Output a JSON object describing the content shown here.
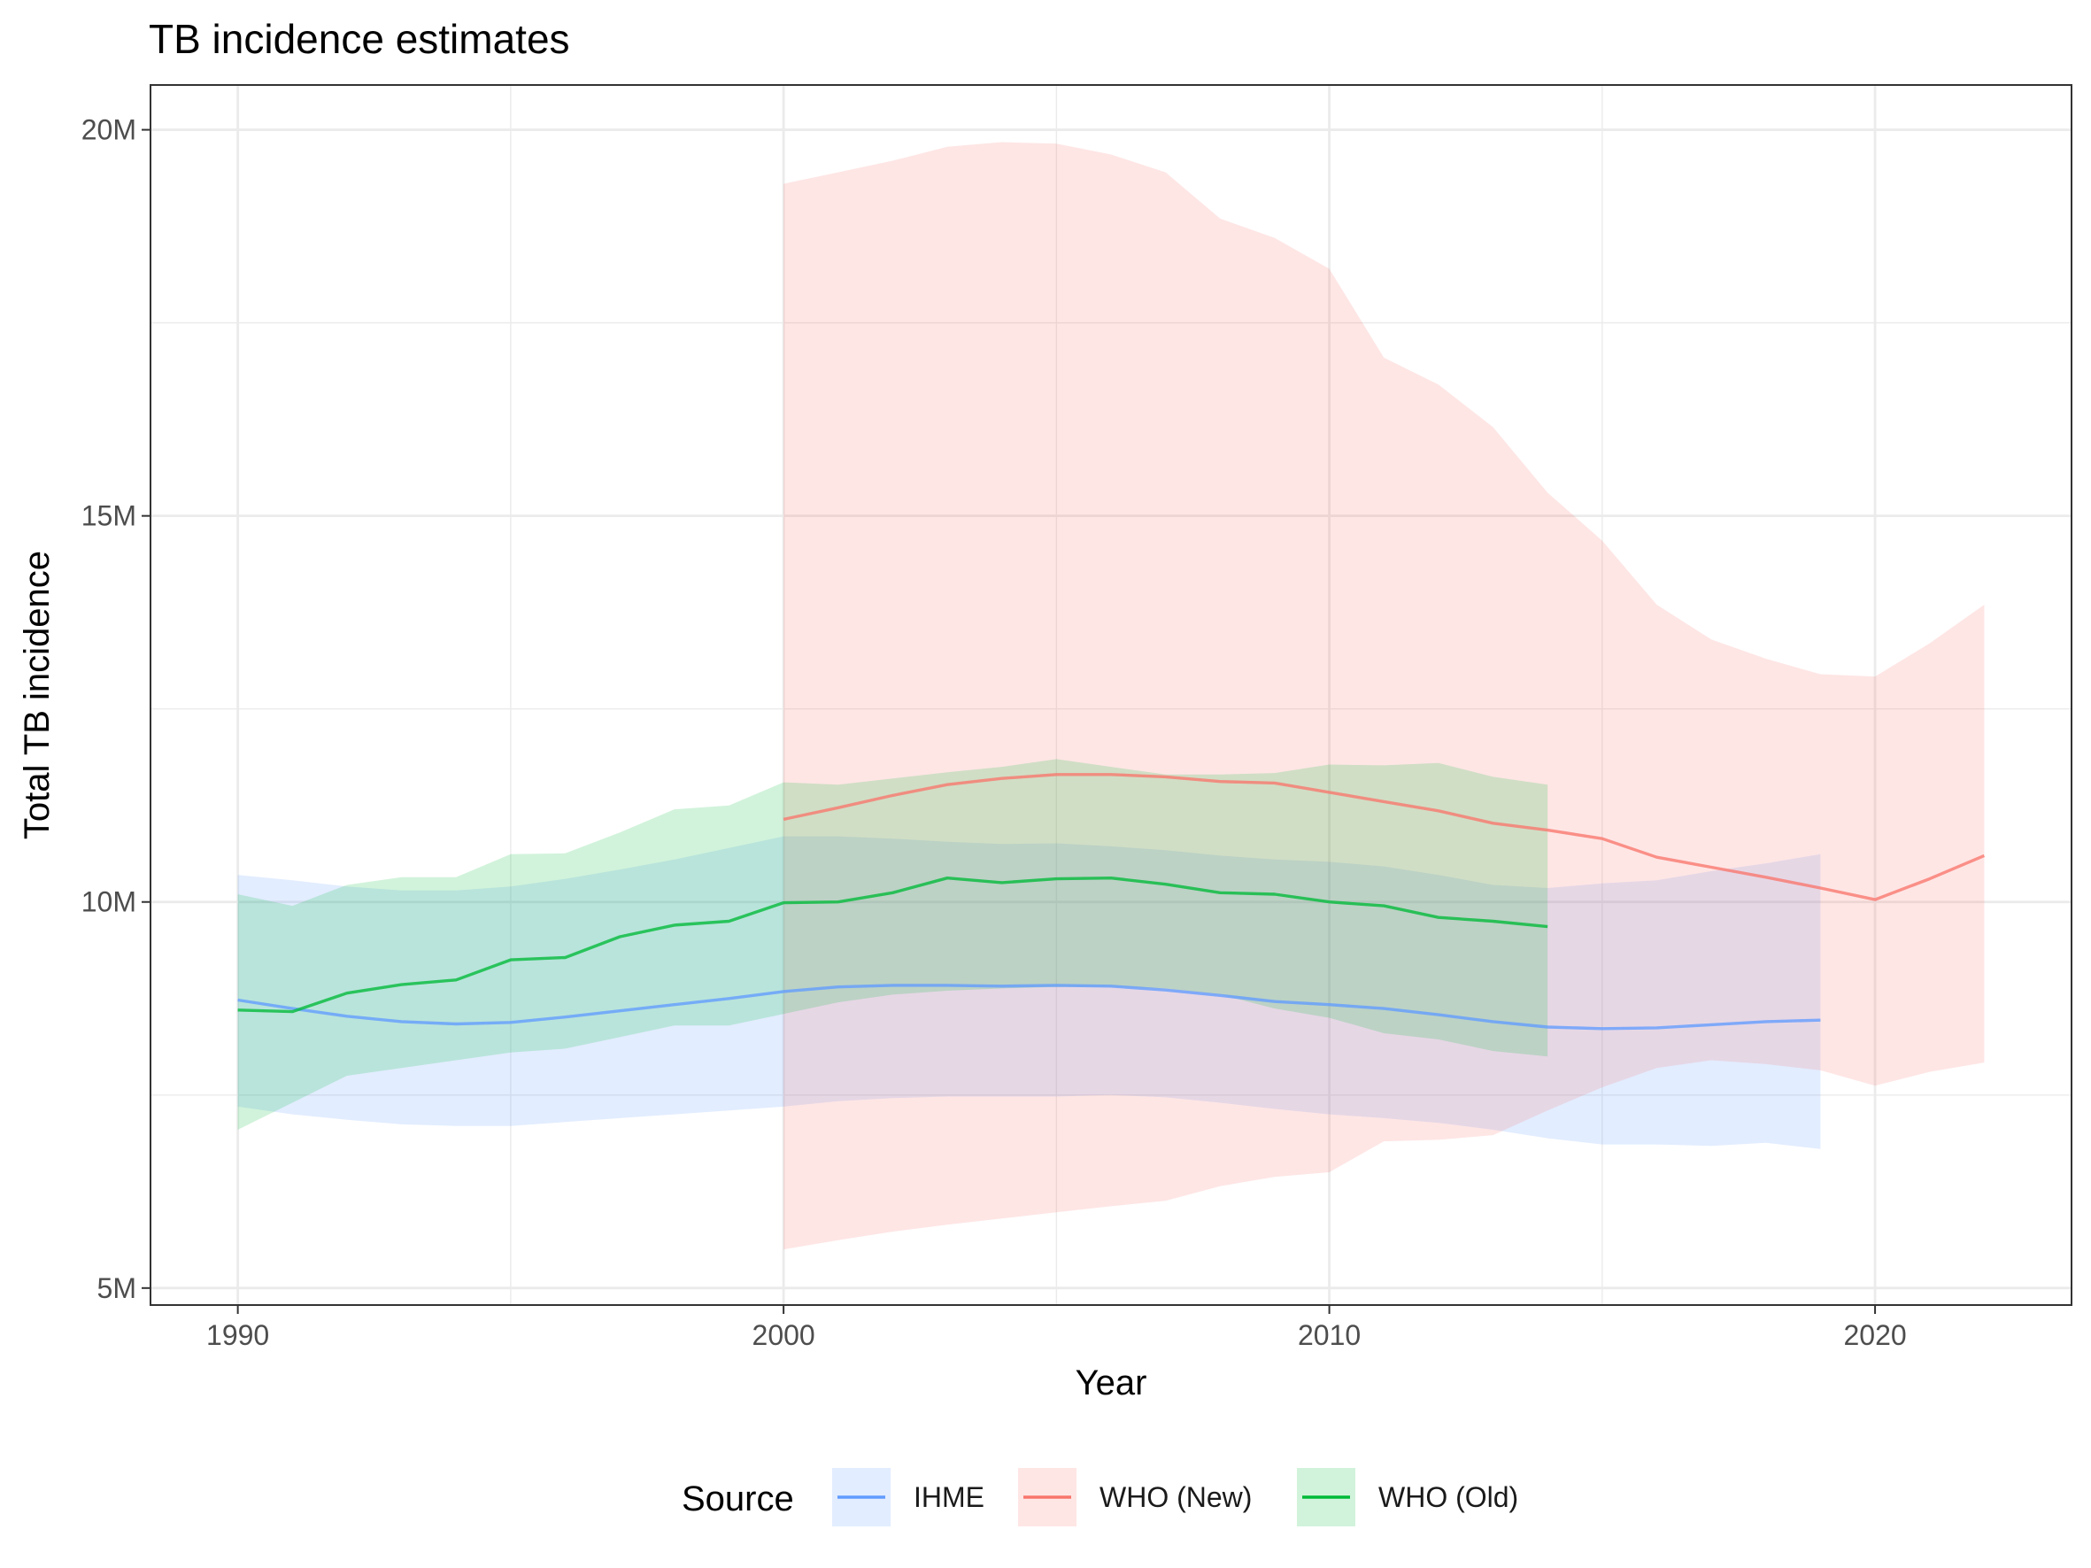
{
  "chart_data": {
    "type": "line",
    "title": "TB incidence estimates",
    "xlabel": "Year",
    "ylabel": "Total TB incidence",
    "xlim": [
      1988.4,
      2023.6
    ],
    "ylim": [
      4.78,
      20.58
    ],
    "x_ticks": [
      {
        "value": 1990,
        "label": "1990"
      },
      {
        "value": 2000,
        "label": "2000"
      },
      {
        "value": 2010,
        "label": "2010"
      },
      {
        "value": 2020,
        "label": "2020"
      }
    ],
    "y_ticks": [
      {
        "value": 5,
        "label": "5M"
      },
      {
        "value": 10,
        "label": "10M"
      },
      {
        "value": 15,
        "label": "15M"
      },
      {
        "value": 20,
        "label": "20M"
      }
    ],
    "x_minor": [
      1995,
      2005,
      2015
    ],
    "y_minor": [
      7.5,
      12.5,
      17.5
    ],
    "y_units": "millions",
    "grid": true,
    "legend": {
      "title": "Source",
      "position": "bottom"
    },
    "series": [
      {
        "name": "IHME",
        "color": "#619CFF",
        "x": [
          1990,
          1991,
          1992,
          1993,
          1994,
          1995,
          1996,
          1997,
          1998,
          1999,
          2000,
          2001,
          2002,
          2003,
          2004,
          2005,
          2006,
          2007,
          2008,
          2009,
          2010,
          2011,
          2012,
          2013,
          2014,
          2015,
          2016,
          2017,
          2018,
          2019
        ],
        "y": [
          8.73,
          8.62,
          8.52,
          8.45,
          8.42,
          8.44,
          8.51,
          8.59,
          8.67,
          8.75,
          8.84,
          8.9,
          8.92,
          8.92,
          8.91,
          8.92,
          8.91,
          8.86,
          8.79,
          8.71,
          8.67,
          8.62,
          8.54,
          8.45,
          8.38,
          8.36,
          8.37,
          8.41,
          8.45,
          8.47
        ],
        "lower": [
          7.35,
          7.25,
          7.18,
          7.12,
          7.1,
          7.1,
          7.15,
          7.2,
          7.25,
          7.3,
          7.35,
          7.42,
          7.46,
          7.48,
          7.48,
          7.48,
          7.5,
          7.47,
          7.4,
          7.32,
          7.25,
          7.2,
          7.14,
          7.05,
          6.94,
          6.86,
          6.86,
          6.84,
          6.88,
          6.8
        ],
        "upper": [
          10.35,
          10.28,
          10.2,
          10.15,
          10.15,
          10.2,
          10.3,
          10.42,
          10.55,
          10.7,
          10.85,
          10.85,
          10.82,
          10.78,
          10.75,
          10.76,
          10.72,
          10.67,
          10.6,
          10.55,
          10.52,
          10.46,
          10.35,
          10.22,
          10.18,
          10.24,
          10.28,
          10.4,
          10.5,
          10.62
        ]
      },
      {
        "name": "WHO (New)",
        "color": "#F8766D",
        "x": [
          2000,
          2001,
          2002,
          2003,
          2004,
          2005,
          2006,
          2007,
          2008,
          2009,
          2010,
          2011,
          2012,
          2013,
          2014,
          2015,
          2016,
          2017,
          2018,
          2019,
          2020,
          2021,
          2022
        ],
        "y": [
          11.07,
          11.22,
          11.38,
          11.52,
          11.6,
          11.65,
          11.65,
          11.62,
          11.56,
          11.54,
          11.42,
          11.3,
          11.18,
          11.02,
          10.93,
          10.82,
          10.58,
          10.45,
          10.32,
          10.18,
          10.03,
          10.3,
          10.6
        ],
        "lower": [
          5.5,
          5.62,
          5.73,
          5.82,
          5.9,
          5.98,
          6.06,
          6.13,
          6.32,
          6.44,
          6.5,
          6.9,
          6.92,
          6.98,
          7.3,
          7.6,
          7.85,
          7.95,
          7.9,
          7.82,
          7.62,
          7.8,
          7.92
        ],
        "upper": [
          19.3,
          19.45,
          19.6,
          19.78,
          19.84,
          19.82,
          19.68,
          19.45,
          18.85,
          18.6,
          18.2,
          17.05,
          16.7,
          16.15,
          15.3,
          14.68,
          13.85,
          13.4,
          13.15,
          12.95,
          12.92,
          13.35,
          13.85
        ]
      },
      {
        "name": "WHO (Old)",
        "color": "#00BA38",
        "x": [
          1990,
          1991,
          1992,
          1993,
          1994,
          1995,
          1996,
          1997,
          1998,
          1999,
          2000,
          2001,
          2002,
          2003,
          2004,
          2005,
          2006,
          2007,
          2008,
          2009,
          2010,
          2011,
          2012,
          2013,
          2014
        ],
        "y": [
          8.6,
          8.58,
          8.82,
          8.93,
          8.99,
          9.25,
          9.28,
          9.55,
          9.7,
          9.75,
          9.99,
          10.0,
          10.12,
          10.31,
          10.25,
          10.3,
          10.31,
          10.23,
          10.12,
          10.1,
          10.0,
          9.95,
          9.8,
          9.75,
          9.68
        ],
        "lower": [
          7.05,
          7.4,
          7.75,
          7.85,
          7.95,
          8.05,
          8.1,
          8.25,
          8.4,
          8.4,
          8.55,
          8.7,
          8.8,
          8.85,
          8.88,
          8.9,
          8.9,
          8.88,
          8.8,
          8.62,
          8.5,
          8.3,
          8.22,
          8.07,
          8.0
        ],
        "upper": [
          10.1,
          9.95,
          10.22,
          10.32,
          10.32,
          10.62,
          10.63,
          10.9,
          11.2,
          11.25,
          11.55,
          11.52,
          11.6,
          11.68,
          11.75,
          11.85,
          11.75,
          11.65,
          11.65,
          11.67,
          11.78,
          11.77,
          11.8,
          11.62,
          11.52
        ]
      }
    ]
  }
}
